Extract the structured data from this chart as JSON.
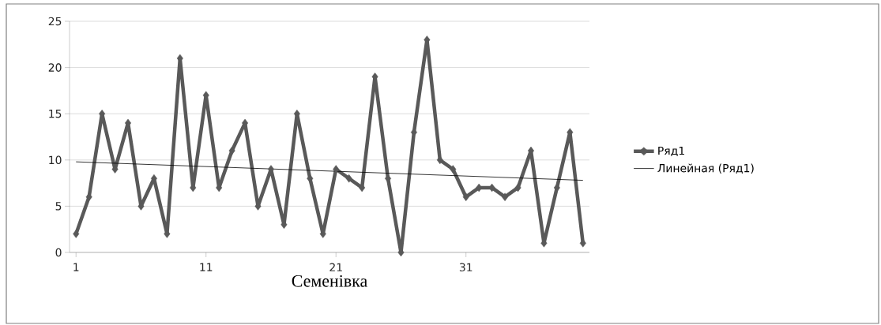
{
  "chart_data": {
    "type": "line",
    "xlabel": "Семенівка",
    "x": [
      1,
      2,
      3,
      4,
      5,
      6,
      7,
      8,
      9,
      10,
      11,
      12,
      13,
      14,
      15,
      16,
      17,
      18,
      19,
      20,
      21,
      22,
      23,
      24,
      25,
      26,
      27,
      28,
      29,
      30,
      31,
      32,
      33,
      34,
      35,
      36,
      37,
      38,
      39,
      40
    ],
    "series": [
      {
        "name": "Ряд1",
        "color": "#595959",
        "marker": "diamond",
        "values": [
          2,
          6,
          15,
          9,
          14,
          5,
          8,
          2,
          21,
          7,
          17,
          7,
          11,
          14,
          5,
          9,
          3,
          15,
          8,
          2,
          9,
          8,
          7,
          19,
          8,
          0,
          13,
          23,
          10,
          9,
          6,
          7,
          7,
          6,
          7,
          11,
          1,
          7,
          13,
          1
        ]
      },
      {
        "name": "Линейная (Ряд1)",
        "color": "#000000",
        "marker": "none",
        "x": [
          1,
          40
        ],
        "values": [
          9.8,
          7.8
        ]
      }
    ],
    "xlim": [
      0.5,
      40.5
    ],
    "xticks": [
      1,
      11,
      21,
      31
    ],
    "ylim": [
      0,
      25
    ],
    "yticks": [
      0,
      5,
      10,
      15,
      20,
      25
    ],
    "grid": "y",
    "legend": "right",
    "line_style": "solid"
  }
}
